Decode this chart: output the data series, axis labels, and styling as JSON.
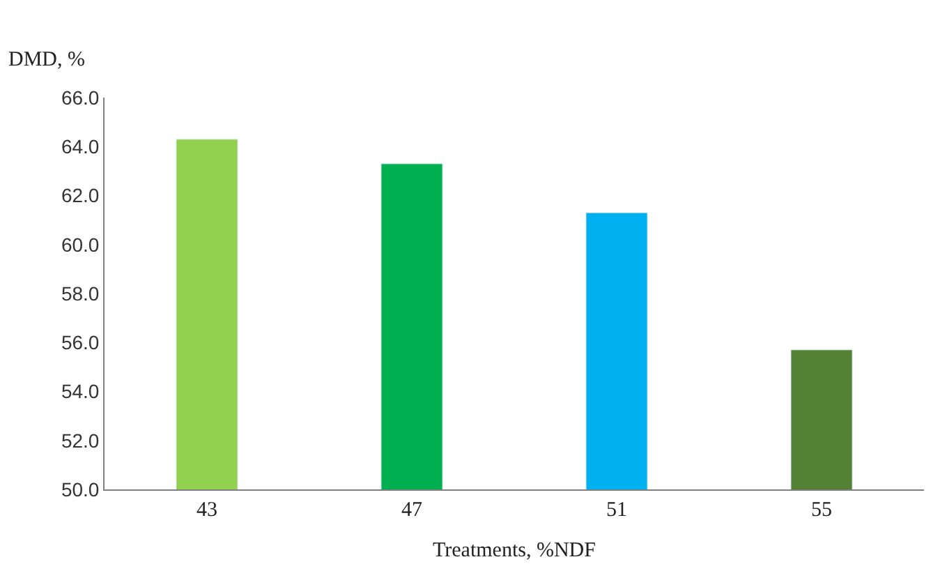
{
  "chart_data": {
    "type": "bar",
    "ylabel": "DMD, %",
    "xlabel": "Treatments, %NDF",
    "categories": [
      "43",
      "47",
      "51",
      "55"
    ],
    "values": [
      64.3,
      63.3,
      61.3,
      55.7
    ],
    "colors": [
      "#92d050",
      "#00b050",
      "#00b0f0",
      "#548235"
    ],
    "ylim": [
      50,
      66
    ],
    "yticks": [
      {
        "value": 50,
        "label": "50.0"
      },
      {
        "value": 52,
        "label": "52.0"
      },
      {
        "value": 54,
        "label": "54.0"
      },
      {
        "value": 56,
        "label": "56.0"
      },
      {
        "value": 58,
        "label": "58.0"
      },
      {
        "value": 60,
        "label": "60.0"
      },
      {
        "value": 62,
        "label": "62.0"
      },
      {
        "value": 64,
        "label": "64.0"
      },
      {
        "value": 66,
        "label": "66.0"
      }
    ]
  }
}
